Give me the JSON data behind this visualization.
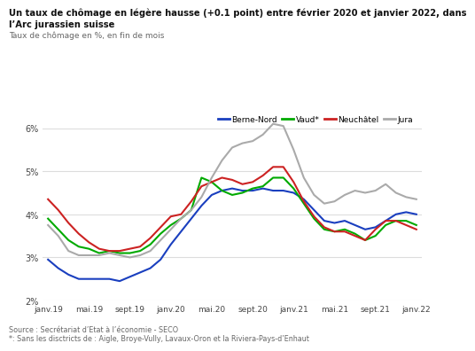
{
  "title_line1": "Un taux de chômage en légère hausse (+0.1 point) entre février 2020 et janvier 2022, dans",
  "title_line2": "l’Arc jurassien suisse",
  "subtitle": "Taux de chômage en %, en fin de mois",
  "source": "Source : Secrétariat d’Etat à l’économie - SECO",
  "footnote": "*: Sans les disctricts de : Aigle, Broye-Vully, Lavaux-Oron et la Riviera-Pays-d’Enhaut",
  "legend": [
    "Berne-Nord",
    "Vaud*",
    "Neuchâtel",
    "Jura"
  ],
  "colors": [
    "#1a3fbf",
    "#00aa00",
    "#cc2222",
    "#aaaaaa"
  ],
  "x_labels": [
    "janv.19",
    "mai.19",
    "sept.19",
    "janv.20",
    "mai.20",
    "sept.20",
    "janv.21",
    "mai.21",
    "sept.21",
    "janv.22"
  ],
  "x_ticks": [
    0,
    4,
    8,
    12,
    16,
    20,
    24,
    28,
    32,
    36
  ],
  "ylim": [
    2.0,
    6.3
  ],
  "yticks": [
    2,
    3,
    4,
    5,
    6
  ],
  "berne_nord": [
    2.95,
    2.75,
    2.6,
    2.5,
    2.5,
    2.5,
    2.5,
    2.45,
    2.55,
    2.65,
    2.75,
    2.95,
    3.3,
    3.6,
    3.9,
    4.2,
    4.45,
    4.55,
    4.6,
    4.55,
    4.55,
    4.6,
    4.55,
    4.55,
    4.5,
    4.35,
    4.1,
    3.85,
    3.8,
    3.85,
    3.75,
    3.65,
    3.7,
    3.85,
    4.0,
    4.05,
    4.0
  ],
  "vaud": [
    3.9,
    3.65,
    3.4,
    3.25,
    3.2,
    3.1,
    3.15,
    3.1,
    3.1,
    3.15,
    3.3,
    3.55,
    3.75,
    3.9,
    4.1,
    4.85,
    4.75,
    4.55,
    4.45,
    4.5,
    4.6,
    4.65,
    4.85,
    4.85,
    4.6,
    4.25,
    3.9,
    3.65,
    3.6,
    3.65,
    3.55,
    3.4,
    3.5,
    3.75,
    3.85,
    3.85,
    3.75
  ],
  "neuchatel": [
    4.35,
    4.1,
    3.8,
    3.55,
    3.35,
    3.2,
    3.15,
    3.15,
    3.2,
    3.25,
    3.45,
    3.7,
    3.95,
    4.0,
    4.3,
    4.65,
    4.75,
    4.85,
    4.8,
    4.7,
    4.75,
    4.9,
    5.1,
    5.1,
    4.75,
    4.3,
    3.95,
    3.7,
    3.6,
    3.6,
    3.5,
    3.4,
    3.65,
    3.85,
    3.85,
    3.75,
    3.65
  ],
  "jura": [
    3.75,
    3.5,
    3.15,
    3.05,
    3.05,
    3.05,
    3.1,
    3.05,
    3.0,
    3.05,
    3.15,
    3.4,
    3.65,
    3.9,
    4.1,
    4.4,
    4.85,
    5.25,
    5.55,
    5.65,
    5.7,
    5.85,
    6.1,
    6.05,
    5.5,
    4.85,
    4.45,
    4.25,
    4.3,
    4.45,
    4.55,
    4.5,
    4.55,
    4.7,
    4.5,
    4.4,
    4.35
  ]
}
